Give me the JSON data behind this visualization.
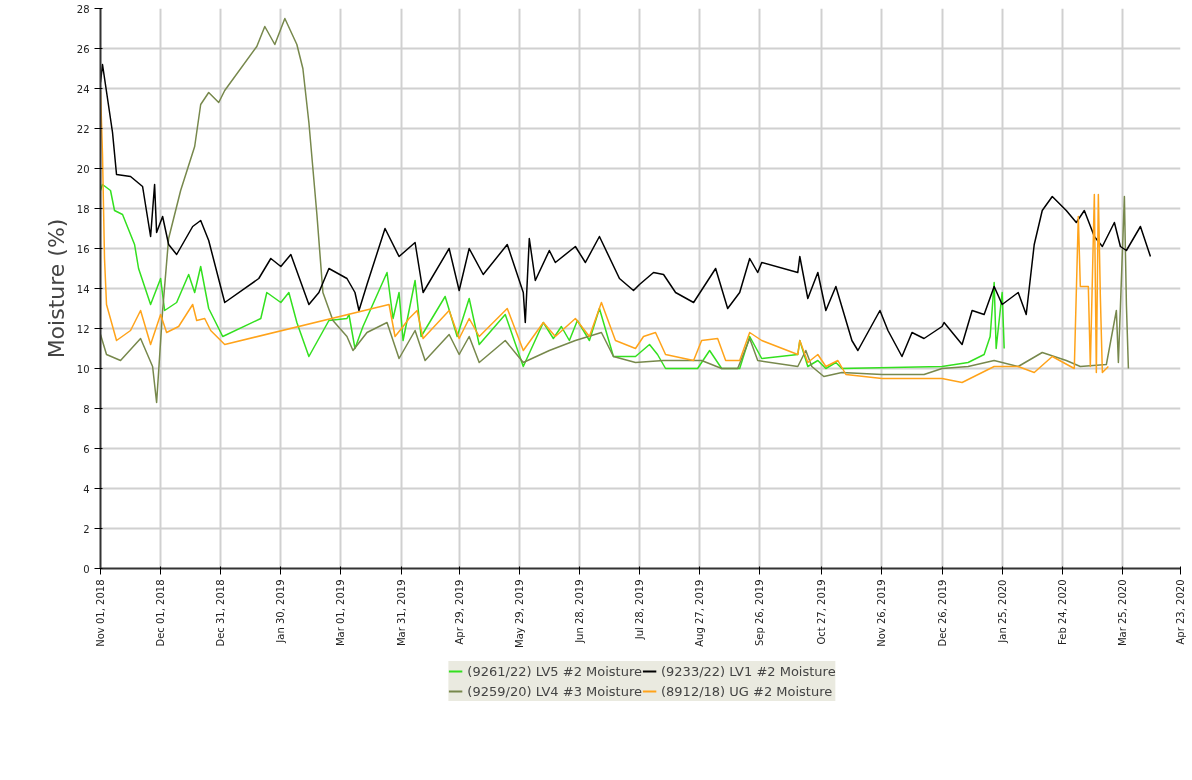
{
  "chart_data": {
    "type": "line",
    "ylabel": "Moisture (%)",
    "grid": true,
    "legend": "bottom",
    "xlim": [
      "2018-11-01",
      "2020-04-23"
    ],
    "xticks": [
      {
        "value": "2018-11-01",
        "label": "Nov 01, 2018"
      },
      {
        "value": "2018-12-01",
        "label": "Dec 01, 2018"
      },
      {
        "value": "2018-12-31",
        "label": "Dec 31, 2018"
      },
      {
        "value": "2019-01-30",
        "label": "Jan 30, 2019"
      },
      {
        "value": "2019-03-01",
        "label": "Mar 01, 2019"
      },
      {
        "value": "2019-03-31",
        "label": "Mar 31, 2019"
      },
      {
        "value": "2019-04-29",
        "label": "Apr 29, 2019"
      },
      {
        "value": "2019-05-29",
        "label": "May 29, 2019"
      },
      {
        "value": "2019-06-28",
        "label": "Jun 28, 2019"
      },
      {
        "value": "2019-07-28",
        "label": "Jul 28, 2019"
      },
      {
        "value": "2019-08-27",
        "label": "Aug 27, 2019"
      },
      {
        "value": "2019-09-26",
        "label": "Sep 26, 2019"
      },
      {
        "value": "2019-10-27",
        "label": "Oct 27, 2019"
      },
      {
        "value": "2019-11-26",
        "label": "Nov 26, 2019"
      },
      {
        "value": "2019-12-26",
        "label": "Dec 26, 2019"
      },
      {
        "value": "2020-01-25",
        "label": "Jan 25, 2020"
      },
      {
        "value": "2020-02-24",
        "label": "Feb 24, 2020"
      },
      {
        "value": "2020-03-25",
        "label": "Mar 25, 2020"
      },
      {
        "value": "2020-04-23",
        "label": "Apr 23, 2020"
      }
    ],
    "ylim": [
      0,
      28
    ],
    "yticks": [
      0,
      2,
      4,
      6,
      8,
      10,
      12,
      14,
      16,
      18,
      20,
      22,
      24,
      26,
      28
    ],
    "series": [
      {
        "name": "(9261/22) LV5 #2 Moisture",
        "color": "#33e01f",
        "x": [
          "2018-11-01",
          "2018-11-02",
          "2018-11-06",
          "2018-11-08",
          "2018-11-12",
          "2018-11-18",
          "2018-11-20",
          "2018-11-26",
          "2018-12-01",
          "2018-12-03",
          "2018-12-09",
          "2018-12-15",
          "2018-12-18",
          "2018-12-21",
          "2018-12-25",
          "2019-01-01",
          "2019-01-20",
          "2019-01-23",
          "2019-01-30",
          "2019-02-03",
          "2019-02-07",
          "2019-02-13",
          "2019-02-23",
          "2019-03-04",
          "2019-03-05",
          "2019-03-08",
          "2019-03-12",
          "2019-03-24",
          "2019-03-27",
          "2019-03-30",
          "2019-04-01",
          "2019-04-07",
          "2019-04-10",
          "2019-04-22",
          "2019-04-28",
          "2019-05-04",
          "2019-05-09",
          "2019-05-22",
          "2019-05-31",
          "2019-06-10",
          "2019-06-15",
          "2019-06-19",
          "2019-06-23",
          "2019-06-27",
          "2019-07-03",
          "2019-07-08",
          "2019-07-15",
          "2019-07-26",
          "2019-08-02",
          "2019-08-06",
          "2019-08-10",
          "2019-08-26",
          "2019-09-01",
          "2019-09-07",
          "2019-09-16",
          "2019-09-21",
          "2019-09-27",
          "2019-10-15",
          "2019-10-16",
          "2019-10-20",
          "2019-10-25",
          "2019-10-29",
          "2019-11-03",
          "2019-11-06",
          "2019-12-26",
          "2020-01-08",
          "2020-01-16",
          "2020-01-19",
          "2020-01-21",
          "2020-01-22",
          "2020-01-25",
          "2020-01-26"
        ],
        "values": [
          18.9,
          19.2,
          18.9,
          17.9,
          17.7,
          16.2,
          15.0,
          13.2,
          14.5,
          12.9,
          13.3,
          14.7,
          13.8,
          15.1,
          13.0,
          11.6,
          12.5,
          13.8,
          13.3,
          13.8,
          12.3,
          10.6,
          12.4,
          12.5,
          12.7,
          11.0,
          12.1,
          14.8,
          12.5,
          13.8,
          11.4,
          14.4,
          11.6,
          13.6,
          11.6,
          13.5,
          11.2,
          12.7,
          10.1,
          12.3,
          11.5,
          12.1,
          11.4,
          12.4,
          11.4,
          13.0,
          10.6,
          10.6,
          11.2,
          10.7,
          10.0,
          10.0,
          10.9,
          10.0,
          10.0,
          11.6,
          10.5,
          10.7,
          11.4,
          10.1,
          10.4,
          10.0,
          10.3,
          10.0,
          10.1,
          10.3,
          10.7,
          11.6,
          14.3,
          11.0,
          13.8,
          11.0
        ]
      },
      {
        "name": "(9259/20) LV4 #3 Moisture",
        "color": "#77884c",
        "x": [
          "2018-11-01",
          "2018-11-04",
          "2018-11-11",
          "2018-11-21",
          "2018-11-27",
          "2018-11-29",
          "2018-12-02",
          "2018-12-05",
          "2018-12-11",
          "2018-12-18",
          "2018-12-21",
          "2018-12-25",
          "2018-12-30",
          "2019-01-02",
          "2019-01-18",
          "2019-01-22",
          "2019-01-27",
          "2019-02-01",
          "2019-02-07",
          "2019-02-10",
          "2019-02-13",
          "2019-02-17",
          "2019-02-20",
          "2019-02-25",
          "2019-03-04",
          "2019-03-07",
          "2019-03-14",
          "2019-03-24",
          "2019-03-30",
          "2019-04-07",
          "2019-04-12",
          "2019-04-24",
          "2019-04-29",
          "2019-05-04",
          "2019-05-09",
          "2019-05-22",
          "2019-05-31",
          "2019-06-13",
          "2019-06-26",
          "2019-07-09",
          "2019-07-15",
          "2019-07-26",
          "2019-08-09",
          "2019-08-28",
          "2019-09-07",
          "2019-09-15",
          "2019-09-21",
          "2019-09-25",
          "2019-10-15",
          "2019-10-19",
          "2019-10-22",
          "2019-10-28",
          "2019-11-06",
          "2019-11-26",
          "2019-12-17",
          "2019-12-26",
          "2020-01-08",
          "2020-01-21",
          "2020-02-02",
          "2020-02-14",
          "2020-02-26",
          "2020-03-04",
          "2020-03-17",
          "2020-03-22",
          "2020-03-23",
          "2020-03-26",
          "2020-03-27",
          "2020-03-28"
        ],
        "values": [
          11.7,
          10.7,
          10.4,
          11.5,
          10.1,
          8.3,
          12.9,
          16.5,
          18.9,
          21.1,
          23.2,
          23.8,
          23.3,
          23.9,
          26.1,
          27.1,
          26.2,
          27.5,
          26.2,
          25.0,
          22.3,
          17.7,
          13.8,
          12.4,
          11.6,
          10.9,
          11.8,
          12.3,
          10.5,
          11.9,
          10.4,
          11.7,
          10.7,
          11.6,
          10.3,
          11.4,
          10.3,
          10.9,
          11.4,
          11.8,
          10.6,
          10.3,
          10.4,
          10.4,
          10.0,
          10.0,
          11.5,
          10.4,
          10.1,
          10.9,
          10.1,
          9.6,
          9.8,
          9.7,
          9.7,
          10.0,
          10.1,
          10.4,
          10.1,
          10.8,
          10.4,
          10.1,
          10.2,
          12.9,
          10.3,
          18.6,
          13.2,
          10.0
        ]
      },
      {
        "name": "(9233/22) LV1 #2 Moisture",
        "color": "#000000",
        "x": [
          "2018-11-01",
          "2018-11-02",
          "2018-11-07",
          "2018-11-09",
          "2018-11-16",
          "2018-11-22",
          "2018-11-26",
          "2018-11-28",
          "2018-11-29",
          "2018-12-02",
          "2018-12-05",
          "2018-12-09",
          "2018-12-17",
          "2018-12-21",
          "2018-12-25",
          "2019-01-02",
          "2019-01-19",
          "2019-01-25",
          "2019-01-30",
          "2019-02-04",
          "2019-02-13",
          "2019-02-18",
          "2019-02-23",
          "2019-03-04",
          "2019-03-08",
          "2019-03-10",
          "2019-03-14",
          "2019-03-23",
          "2019-03-30",
          "2019-04-07",
          "2019-04-11",
          "2019-04-24",
          "2019-04-29",
          "2019-05-04",
          "2019-05-11",
          "2019-05-23",
          "2019-05-31",
          "2019-06-01",
          "2019-06-03",
          "2019-06-06",
          "2019-06-13",
          "2019-06-16",
          "2019-06-26",
          "2019-07-01",
          "2019-07-08",
          "2019-07-18",
          "2019-07-25",
          "2019-07-28",
          "2019-08-04",
          "2019-08-09",
          "2019-08-15",
          "2019-08-24",
          "2019-09-04",
          "2019-09-10",
          "2019-09-16",
          "2019-09-21",
          "2019-09-25",
          "2019-09-27",
          "2019-10-15",
          "2019-10-16",
          "2019-10-20",
          "2019-10-25",
          "2019-10-29",
          "2019-11-03",
          "2019-11-11",
          "2019-11-14",
          "2019-11-25",
          "2019-11-29",
          "2019-12-06",
          "2019-12-11",
          "2019-12-17",
          "2019-12-26",
          "2019-12-27",
          "2020-01-05",
          "2020-01-10",
          "2020-01-16",
          "2020-01-21",
          "2020-01-25",
          "2020-02-02",
          "2020-02-06",
          "2020-02-10",
          "2020-02-14",
          "2020-02-19",
          "2020-02-26",
          "2020-03-02",
          "2020-03-06",
          "2020-03-11",
          "2020-03-15",
          "2020-03-21",
          "2020-03-24",
          "2020-03-27",
          "2020-04-03",
          "2020-04-08"
        ],
        "values": [
          24.3,
          25.2,
          21.8,
          19.7,
          19.6,
          19.1,
          16.6,
          19.2,
          16.8,
          17.6,
          16.2,
          15.7,
          17.1,
          17.4,
          16.4,
          13.3,
          14.5,
          15.5,
          15.1,
          15.7,
          13.2,
          13.8,
          15.0,
          14.5,
          13.8,
          12.9,
          14.2,
          17.0,
          15.6,
          16.3,
          13.8,
          16.0,
          13.9,
          16.0,
          14.7,
          16.2,
          13.8,
          12.3,
          16.5,
          14.4,
          15.9,
          15.3,
          16.1,
          15.3,
          16.6,
          14.5,
          13.9,
          14.2,
          14.8,
          14.7,
          13.8,
          13.3,
          15.0,
          13.0,
          13.8,
          15.5,
          14.8,
          15.3,
          14.8,
          15.6,
          13.5,
          14.8,
          12.9,
          14.1,
          11.4,
          10.9,
          12.9,
          11.9,
          10.6,
          11.8,
          11.5,
          12.1,
          12.3,
          11.2,
          12.9,
          12.7,
          14.1,
          13.2,
          13.8,
          12.7,
          16.2,
          17.9,
          18.6,
          17.9,
          17.3,
          17.9,
          16.6,
          16.1,
          17.3,
          16.1,
          15.9,
          17.1,
          15.6
        ]
      },
      {
        "name": "(8912/18) UG #2 Moisture",
        "color": "#ffa31a",
        "x": [
          "2018-11-01",
          "2018-11-02",
          "2018-11-03",
          "2018-11-04",
          "2018-11-09",
          "2018-11-16",
          "2018-11-21",
          "2018-11-26",
          "2018-12-01",
          "2018-12-04",
          "2018-12-10",
          "2018-12-17",
          "2018-12-19",
          "2018-12-23",
          "2018-12-26",
          "2019-01-02",
          "2019-03-25",
          "2019-03-28",
          "2019-04-01",
          "2019-04-04",
          "2019-04-08",
          "2019-04-11",
          "2019-04-24",
          "2019-04-29",
          "2019-05-04",
          "2019-05-09",
          "2019-05-23",
          "2019-05-31",
          "2019-06-10",
          "2019-06-16",
          "2019-06-26",
          "2019-07-03",
          "2019-07-09",
          "2019-07-16",
          "2019-07-26",
          "2019-07-30",
          "2019-08-05",
          "2019-08-10",
          "2019-08-24",
          "2019-08-28",
          "2019-09-05",
          "2019-09-09",
          "2019-09-16",
          "2019-09-21",
          "2019-09-27",
          "2019-10-15",
          "2019-10-16",
          "2019-10-20",
          "2019-10-25",
          "2019-10-29",
          "2019-11-04",
          "2019-11-08",
          "2019-11-26",
          "2019-12-26",
          "2020-01-05",
          "2020-01-21",
          "2020-02-02",
          "2020-02-10",
          "2020-02-19",
          "2020-03-01",
          "2020-03-03",
          "2020-03-04",
          "2020-03-08",
          "2020-03-09",
          "2020-03-11",
          "2020-03-12",
          "2020-03-13",
          "2020-03-14",
          "2020-03-15",
          "2020-03-18"
        ],
        "values": [
          23.9,
          20.7,
          15.5,
          13.2,
          11.4,
          11.9,
          12.9,
          11.2,
          12.7,
          11.8,
          12.1,
          13.2,
          12.4,
          12.5,
          11.9,
          11.2,
          13.2,
          11.6,
          12.1,
          12.5,
          12.9,
          11.5,
          12.9,
          11.5,
          12.5,
          11.6,
          13.0,
          10.9,
          12.3,
          11.6,
          12.5,
          11.6,
          13.3,
          11.4,
          11.0,
          11.6,
          11.8,
          10.7,
          10.4,
          11.4,
          11.5,
          10.4,
          10.4,
          11.8,
          11.4,
          10.7,
          11.4,
          10.3,
          10.7,
          10.1,
          10.4,
          9.7,
          9.5,
          9.5,
          9.3,
          10.1,
          10.1,
          9.8,
          10.6,
          10.0,
          17.6,
          14.1,
          14.1,
          10.1,
          18.7,
          9.8,
          18.7,
          13.6,
          9.8,
          10.1
        ]
      }
    ]
  }
}
